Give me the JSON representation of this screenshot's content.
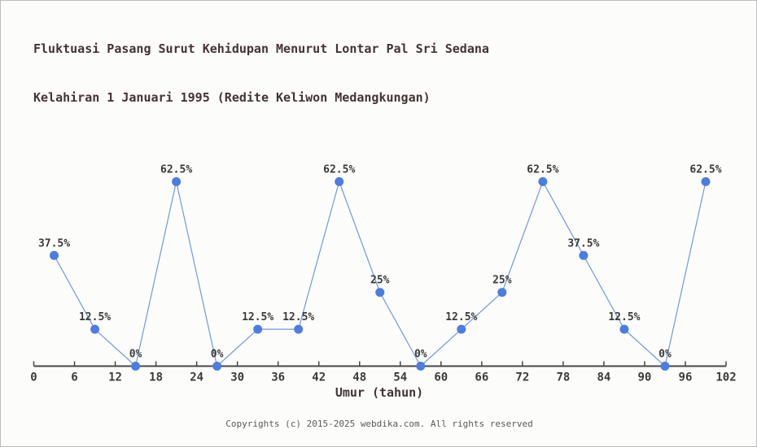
{
  "title": {
    "line1": "Fluktuasi Pasang Surut Kehidupan Menurut Lontar Pal Sri Sedana",
    "line2": "Kelahiran 1 Januari 1995 (Redite Keliwon Medangkungan)"
  },
  "chart_data": {
    "type": "line",
    "x": [
      3,
      9,
      15,
      21,
      27,
      33,
      39,
      45,
      51,
      57,
      63,
      69,
      75,
      81,
      87,
      93,
      99
    ],
    "values": [
      37.5,
      12.5,
      0,
      62.5,
      0,
      12.5,
      12.5,
      62.5,
      25,
      0,
      12.5,
      25,
      62.5,
      37.5,
      12.5,
      0,
      62.5
    ],
    "point_labels": [
      "37.5%",
      "12.5%",
      "0%",
      "62.5%",
      "0%",
      "12.5%",
      "12.5%",
      "62.5%",
      "25%",
      "0%",
      "12.5%",
      "25%",
      "62.5%",
      "37.5%",
      "12.5%",
      "0%",
      "62.5%"
    ],
    "x_ticks": [
      0,
      6,
      12,
      18,
      24,
      30,
      36,
      42,
      48,
      54,
      60,
      66,
      72,
      78,
      84,
      90,
      96,
      102
    ],
    "xlim": [
      0,
      102
    ],
    "ylim": [
      0,
      70
    ],
    "xlabel": "Umur (tahun)",
    "grid": false,
    "legend": "none",
    "y_axis_shown": false,
    "line_color": "#6f9ad8",
    "marker_color": "#4c7de0",
    "axis_color": "#474747"
  },
  "footer": {
    "copyright": "Copyrights (c) 2015-2025 webdika.com. All rights reserved"
  }
}
